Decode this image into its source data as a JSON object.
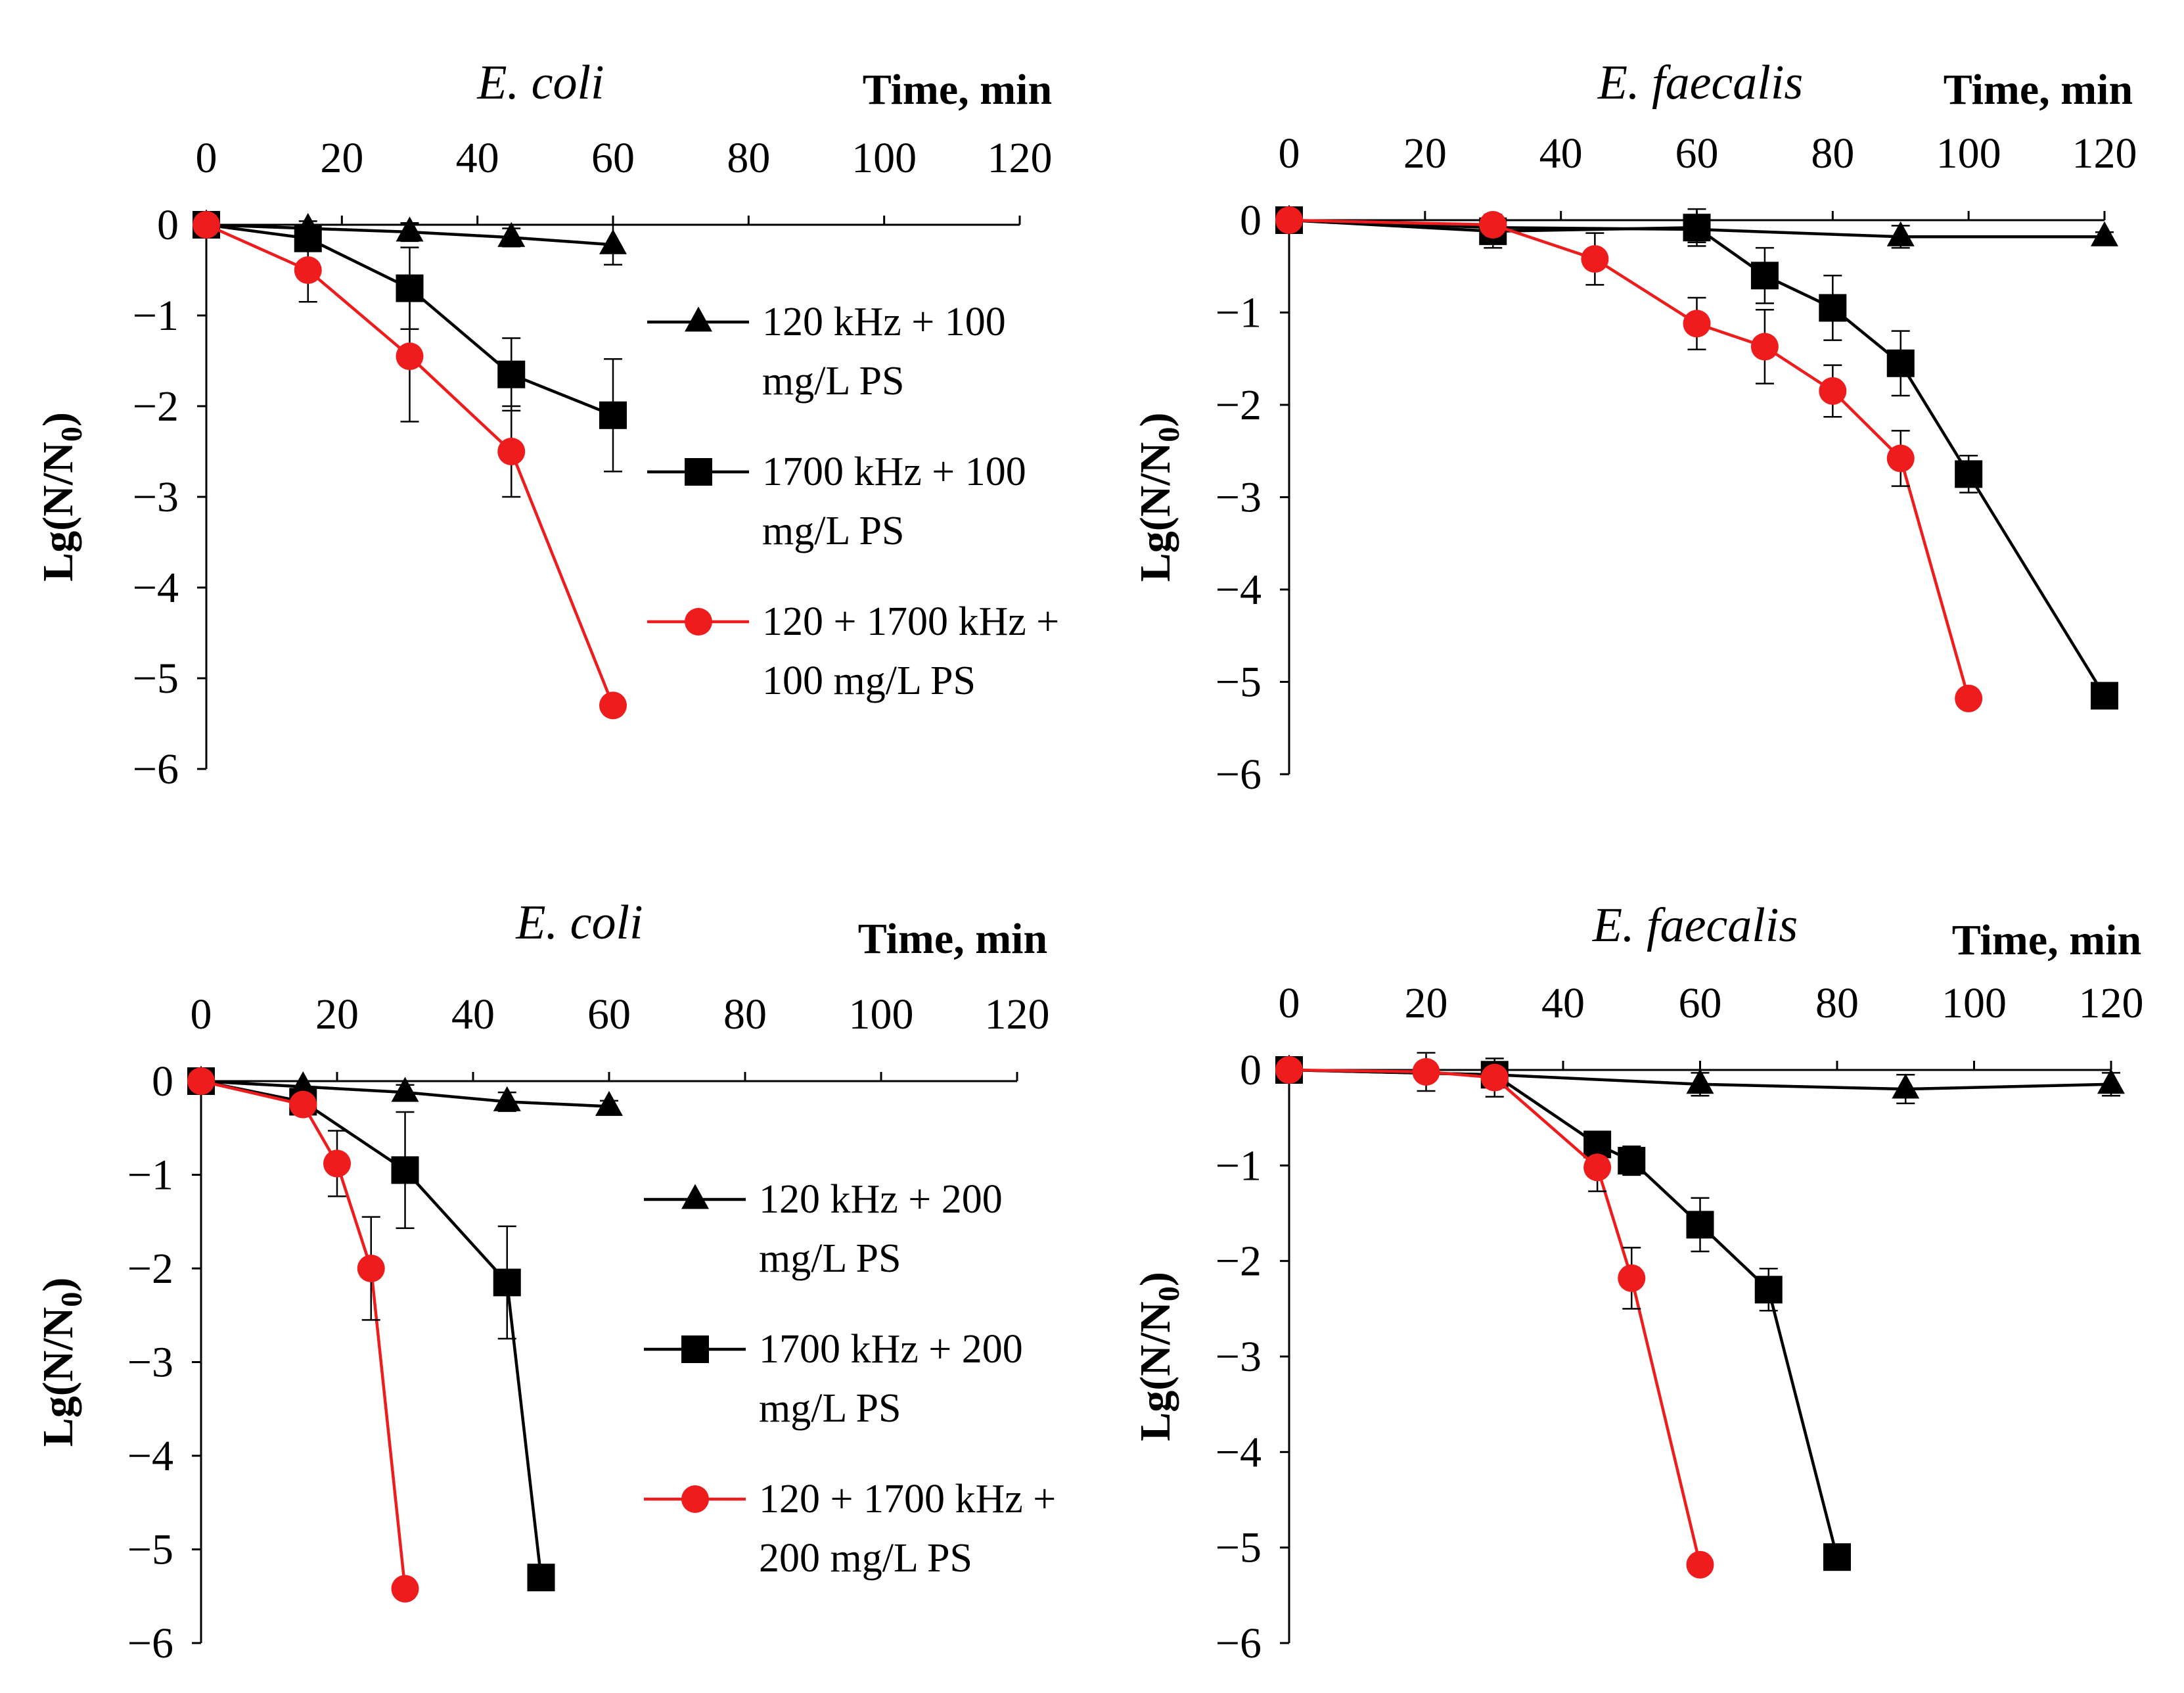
{
  "figure": {
    "colors": {
      "black_series": "#000000",
      "red_series": "#ee1c1c",
      "axis": "#000000"
    }
  },
  "legends": [
    {
      "entries": [
        {
          "line1": "120 kHz + 100",
          "line2": "mg/L PS",
          "marker": "triangle",
          "color": "#000000"
        },
        {
          "line1": "1700 kHz + 100",
          "line2": "mg/L PS",
          "marker": "square",
          "color": "#000000"
        },
        {
          "line1": "120 + 1700 kHz +",
          "line2": "100 mg/L PS",
          "marker": "circle",
          "color": "#ee1c1c"
        }
      ]
    },
    {
      "entries": [
        {
          "line1": "120 kHz + 200",
          "line2": "mg/L PS",
          "marker": "triangle",
          "color": "#000000"
        },
        {
          "line1": "1700 kHz + 200",
          "line2": "mg/L PS",
          "marker": "square",
          "color": "#000000"
        },
        {
          "line1": "120 + 1700 kHz +",
          "line2": "200 mg/L PS",
          "marker": "circle",
          "color": "#ee1c1c"
        }
      ]
    }
  ],
  "chart_data": [
    {
      "type": "line",
      "title": "E. coli",
      "xlabel": "Time, min",
      "ylabel_main": "Lg(N/N",
      "ylabel_sub": "0",
      "ylabel_close": ")",
      "xlim": [
        0,
        120
      ],
      "ylim": [
        -6,
        0
      ],
      "x_ticks": [
        "0",
        "20",
        "40",
        "60",
        "80",
        "100",
        "120"
      ],
      "y_ticks": [
        "0",
        "−1",
        "−2",
        "−3",
        "−4",
        "−5",
        "−6"
      ],
      "series": [
        {
          "name": "120 kHz + 100 mg/L PS",
          "marker": "triangle",
          "color": "#000000",
          "x": [
            0,
            15,
            30,
            45,
            60
          ],
          "y": [
            0,
            -0.04,
            -0.08,
            -0.14,
            -0.22
          ],
          "err": [
            0.06,
            0.08,
            0.1,
            0.1,
            0.22
          ]
        },
        {
          "name": "1700 kHz + 100 mg/L PS",
          "marker": "square",
          "color": "#000000",
          "x": [
            0,
            15,
            30,
            45,
            60
          ],
          "y": [
            0,
            -0.15,
            -0.7,
            -1.65,
            -2.1
          ],
          "err": [
            0.05,
            0.12,
            0.45,
            0.4,
            0.62
          ]
        },
        {
          "name": "120 + 1700 kHz + 100 mg/L PS",
          "marker": "circle",
          "color": "#ee1c1c",
          "x": [
            0,
            15,
            30,
            45,
            60
          ],
          "y": [
            0,
            -0.5,
            -1.45,
            -2.5,
            -5.3
          ],
          "err": [
            0.05,
            0.35,
            0.72,
            0.5,
            0
          ]
        }
      ]
    },
    {
      "type": "line",
      "title": "E. faecalis",
      "xlabel": "Time, min",
      "ylabel_main": "Lg(N/N",
      "ylabel_sub": "0",
      "ylabel_close": ")",
      "xlim": [
        0,
        120
      ],
      "ylim": [
        -6,
        0
      ],
      "x_ticks": [
        "0",
        "20",
        "40",
        "60",
        "80",
        "100",
        "120"
      ],
      "y_ticks": [
        "0",
        "−1",
        "−2",
        "−3",
        "−4",
        "−5",
        "−6"
      ],
      "series": [
        {
          "name": "120 kHz + 100 mg/L PS",
          "marker": "triangle",
          "color": "#000000",
          "x": [
            0,
            30,
            60,
            90,
            120
          ],
          "y": [
            0,
            -0.08,
            -0.1,
            -0.18,
            -0.18
          ],
          "err": [
            0.05,
            0.12,
            0.14,
            0.12,
            0.05
          ]
        },
        {
          "name": "1700 kHz + 100 mg/L PS",
          "marker": "square",
          "color": "#000000",
          "x": [
            0,
            30,
            60,
            70,
            80,
            90,
            100,
            120
          ],
          "y": [
            0,
            -0.12,
            -0.08,
            -0.6,
            -0.95,
            -1.55,
            -2.75,
            -5.15
          ],
          "err": [
            0.05,
            0.18,
            0.2,
            0.3,
            0.35,
            0.35,
            0.2,
            0
          ]
        },
        {
          "name": "120 + 1700 kHz + 100 mg/L PS",
          "marker": "circle",
          "color": "#ee1c1c",
          "x": [
            0,
            30,
            45,
            60,
            70,
            80,
            90,
            100
          ],
          "y": [
            0,
            -0.05,
            -0.42,
            -1.12,
            -1.37,
            -1.85,
            -2.58,
            -5.18
          ],
          "err": [
            0.03,
            0.05,
            0.28,
            0.28,
            0.4,
            0.28,
            0.3,
            0
          ]
        }
      ]
    },
    {
      "type": "line",
      "title": "E. coli",
      "xlabel": "Time, min",
      "ylabel_main": "Lg(N/N",
      "ylabel_sub": "0",
      "ylabel_close": ")",
      "xlim": [
        0,
        120
      ],
      "ylim": [
        -6,
        0
      ],
      "x_ticks": [
        "0",
        "20",
        "40",
        "60",
        "80",
        "100",
        "120"
      ],
      "y_ticks": [
        "0",
        "−1",
        "−2",
        "−3",
        "−4",
        "−5",
        "−6"
      ],
      "series": [
        {
          "name": "120 kHz + 200 mg/L PS",
          "marker": "triangle",
          "color": "#000000",
          "x": [
            0,
            15,
            30,
            45,
            60
          ],
          "y": [
            0,
            -0.06,
            -0.12,
            -0.22,
            -0.27
          ],
          "err": [
            0.04,
            0.06,
            0.08,
            0.1,
            0.06
          ]
        },
        {
          "name": "1700 kHz + 200 mg/L PS",
          "marker": "square",
          "color": "#000000",
          "x": [
            0,
            15,
            30,
            45,
            50
          ],
          "y": [
            0,
            -0.22,
            -0.95,
            -2.15,
            -5.3
          ],
          "err": [
            0.04,
            0.1,
            0.62,
            0.6,
            0
          ]
        },
        {
          "name": "120 + 1700 kHz + 200 mg/L PS",
          "marker": "circle",
          "color": "#ee1c1c",
          "x": [
            0,
            15,
            20,
            25,
            30
          ],
          "y": [
            0,
            -0.25,
            -0.88,
            -2.0,
            -5.42
          ],
          "err": [
            0.04,
            0.08,
            0.35,
            0.55,
            0
          ]
        }
      ]
    },
    {
      "type": "line",
      "title": "E. faecalis",
      "xlabel": "Time, min",
      "ylabel_main": "Lg(N/N",
      "ylabel_sub": "0",
      "ylabel_close": ")",
      "xlim": [
        0,
        120
      ],
      "ylim": [
        -6,
        0
      ],
      "x_ticks": [
        "0",
        "20",
        "40",
        "60",
        "80",
        "100",
        "120"
      ],
      "y_ticks": [
        "0",
        "−1",
        "−2",
        "−3",
        "−4",
        "−5",
        "−6"
      ],
      "series": [
        {
          "name": "120 kHz + 200 mg/L PS",
          "marker": "triangle",
          "color": "#000000",
          "x": [
            0,
            30,
            60,
            90,
            120
          ],
          "y": [
            0,
            -0.05,
            -0.15,
            -0.2,
            -0.15
          ],
          "err": [
            0.08,
            0.1,
            0.12,
            0.15,
            0.12
          ]
        },
        {
          "name": "1700 kHz + 200 mg/L PS",
          "marker": "square",
          "color": "#000000",
          "x": [
            0,
            30,
            45,
            50,
            60,
            70,
            80
          ],
          "y": [
            0,
            -0.05,
            -0.78,
            -0.95,
            -1.62,
            -2.3,
            -5.1
          ],
          "err": [
            0.05,
            0.1,
            0.1,
            0.15,
            0.28,
            0.22,
            0
          ]
        },
        {
          "name": "120 + 1700 kHz + 200 mg/L PS",
          "marker": "circle",
          "color": "#ee1c1c",
          "x": [
            0,
            20,
            30,
            45,
            50,
            60
          ],
          "y": [
            0,
            -0.02,
            -0.08,
            -1.02,
            -2.18,
            -5.18
          ],
          "err": [
            0.03,
            0.2,
            0.2,
            0.25,
            0.32,
            0
          ]
        }
      ]
    }
  ]
}
